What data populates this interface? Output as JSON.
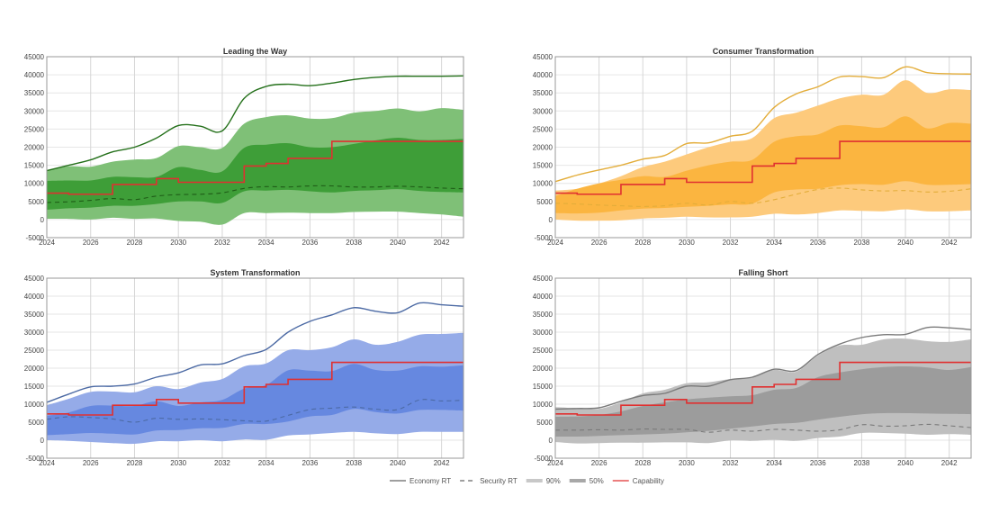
{
  "chart_data": [
    {
      "type": "area",
      "title": "Leading the Way",
      "x": [
        2024,
        2025,
        2026,
        2027,
        2028,
        2029,
        2030,
        2031,
        2032,
        2033,
        2034,
        2035,
        2036,
        2037,
        2038,
        2039,
        2040,
        2041,
        2042,
        2043
      ],
      "ylim": [
        -5000,
        45000
      ],
      "xlim": [
        2024,
        2043
      ],
      "yticks": [
        -5000,
        0,
        5000,
        10000,
        15000,
        20000,
        25000,
        30000,
        35000,
        40000,
        45000
      ],
      "xticks": [
        2024,
        2026,
        2028,
        2030,
        2032,
        2034,
        2036,
        2038,
        2040,
        2042
      ],
      "colors": {
        "line": "#2f7d22",
        "band90": "#7fc077",
        "band50": "#3e9e38"
      },
      "series": [
        {
          "name": "Economy RT",
          "values": [
            13500,
            15000,
            16500,
            18700,
            20000,
            22500,
            26000,
            25800,
            24500,
            33500,
            36800,
            37400,
            37000,
            37700,
            38700,
            39300,
            39600,
            39600,
            39600,
            39700
          ]
        },
        {
          "name": "Security RT",
          "values": [
            4700,
            4900,
            5300,
            5800,
            5500,
            6500,
            6900,
            7000,
            7400,
            8600,
            9100,
            9000,
            9300,
            9300,
            9000,
            9000,
            9200,
            9000,
            8700,
            8500
          ]
        },
        {
          "name": "90% upper",
          "values": [
            13600,
            14700,
            14600,
            16000,
            16600,
            17000,
            20300,
            20000,
            19800,
            26500,
            28300,
            28800,
            27900,
            28000,
            29500,
            30000,
            30700,
            29900,
            30800,
            30300
          ]
        },
        {
          "name": "50% upper",
          "values": [
            10700,
            10800,
            10800,
            11800,
            11700,
            11800,
            14500,
            13700,
            13300,
            19800,
            20700,
            21100,
            20000,
            20000,
            20900,
            21900,
            22600,
            22000,
            22000,
            22300
          ]
        },
        {
          "name": "50% lower",
          "values": [
            2700,
            3100,
            3300,
            3800,
            3800,
            4300,
            5000,
            5000,
            4600,
            7800,
            8000,
            8200,
            7800,
            7500,
            7900,
            8100,
            8400,
            7900,
            7600,
            7500
          ]
        },
        {
          "name": "90% lower",
          "values": [
            200,
            200,
            0,
            500,
            200,
            300,
            -400,
            -600,
            -1400,
            1800,
            1800,
            1900,
            1800,
            1800,
            2100,
            2200,
            2200,
            1800,
            1400,
            800
          ]
        },
        {
          "name": "Capability",
          "values": [
            7300,
            7000,
            7000,
            9700,
            9700,
            11300,
            10300,
            10300,
            10300,
            14800,
            15500,
            16900,
            16900,
            21600,
            21600,
            21600,
            21600,
            21600,
            21600,
            21600
          ]
        }
      ]
    },
    {
      "type": "area",
      "title": "Consumer Transformation",
      "x": [
        2024,
        2025,
        2026,
        2027,
        2028,
        2029,
        2030,
        2031,
        2032,
        2033,
        2034,
        2035,
        2036,
        2037,
        2038,
        2039,
        2040,
        2041,
        2042,
        2043
      ],
      "ylim": [
        -5000,
        45000
      ],
      "xlim": [
        2024,
        2043
      ],
      "yticks": [
        -5000,
        0,
        5000,
        10000,
        15000,
        20000,
        25000,
        30000,
        35000,
        40000,
        45000
      ],
      "xticks": [
        2024,
        2026,
        2028,
        2030,
        2032,
        2034,
        2036,
        2038,
        2040,
        2042
      ],
      "colors": {
        "line": "#e3ad3a",
        "band90": "#fdca7c",
        "band50": "#fbb540"
      },
      "series": [
        {
          "name": "Economy RT",
          "values": [
            10500,
            12300,
            13700,
            15000,
            16700,
            17700,
            21000,
            21200,
            23000,
            24400,
            31000,
            34700,
            36700,
            39400,
            39500,
            39200,
            42200,
            40600,
            40300,
            40200
          ]
        },
        {
          "name": "Security RT",
          "values": [
            4500,
            4300,
            4000,
            3800,
            3600,
            3800,
            4500,
            4000,
            5000,
            4500,
            5500,
            7000,
            8300,
            8700,
            8200,
            7900,
            8000,
            7600,
            7800,
            8500
          ]
        },
        {
          "name": "90% upper",
          "values": [
            8000,
            8500,
            10000,
            12000,
            14500,
            16000,
            18000,
            20000,
            21500,
            22500,
            28000,
            29500,
            31500,
            33500,
            34500,
            34500,
            38500,
            35000,
            36000,
            35800
          ]
        },
        {
          "name": "50% upper",
          "values": [
            6500,
            8500,
            10000,
            11000,
            12000,
            11800,
            13500,
            15000,
            16000,
            16500,
            21500,
            23000,
            23500,
            26000,
            25800,
            25500,
            28500,
            25200,
            26700,
            26500
          ]
        },
        {
          "name": "50% lower",
          "values": [
            1800,
            1700,
            1900,
            2500,
            3000,
            3200,
            3500,
            3800,
            4200,
            4400,
            7500,
            8300,
            8500,
            9500,
            9800,
            9600,
            10600,
            9600,
            9600,
            9800
          ]
        },
        {
          "name": "90% lower",
          "values": [
            0,
            -300,
            -300,
            -200,
            300,
            500,
            800,
            600,
            600,
            800,
            1600,
            1400,
            1800,
            2500,
            2400,
            2300,
            2800,
            2300,
            2300,
            2500
          ]
        },
        {
          "name": "Capability",
          "values": [
            7300,
            7000,
            7000,
            9700,
            9700,
            11300,
            10300,
            10300,
            10300,
            14800,
            15500,
            16900,
            16900,
            21600,
            21600,
            21600,
            21600,
            21600,
            21600,
            21600
          ]
        }
      ]
    },
    {
      "type": "area",
      "title": "System Transformation",
      "x": [
        2024,
        2025,
        2026,
        2027,
        2028,
        2029,
        2030,
        2031,
        2032,
        2033,
        2034,
        2035,
        2036,
        2037,
        2038,
        2039,
        2040,
        2041,
        2042,
        2043
      ],
      "ylim": [
        -5000,
        45000
      ],
      "xlim": [
        2024,
        2043
      ],
      "yticks": [
        -5000,
        0,
        5000,
        10000,
        15000,
        20000,
        25000,
        30000,
        35000,
        40000,
        45000
      ],
      "xticks": [
        2024,
        2026,
        2028,
        2030,
        2032,
        2034,
        2036,
        2038,
        2040,
        2042
      ],
      "colors": {
        "line": "#4c6aa4",
        "band90": "#95abe8",
        "band50": "#6688e0"
      },
      "series": [
        {
          "name": "Economy RT",
          "values": [
            10500,
            12800,
            14800,
            15000,
            15600,
            17500,
            18700,
            20900,
            21200,
            23500,
            25200,
            30000,
            33000,
            34800,
            36800,
            35800,
            35400,
            38100,
            37600,
            37200
          ]
        },
        {
          "name": "Security RT",
          "values": [
            5800,
            6500,
            6300,
            5900,
            5000,
            6100,
            5800,
            5900,
            5700,
            5400,
            5300,
            6900,
            8500,
            8900,
            9200,
            8600,
            8500,
            11200,
            10900,
            11100
          ]
        },
        {
          "name": "90% upper",
          "values": [
            9700,
            11500,
            13400,
            13500,
            13300,
            15000,
            14200,
            16000,
            17000,
            20500,
            21300,
            25000,
            25000,
            25800,
            28000,
            26500,
            27300,
            29300,
            29500,
            29800
          ]
        },
        {
          "name": "50% upper",
          "values": [
            6800,
            7700,
            9500,
            9600,
            9500,
            10800,
            9500,
            10500,
            11200,
            14300,
            15300,
            19400,
            19300,
            19200,
            21200,
            19500,
            19300,
            20500,
            20400,
            20800
          ]
        },
        {
          "name": "50% lower",
          "values": [
            1400,
            1700,
            2000,
            1800,
            1600,
            2700,
            2800,
            3300,
            3400,
            4500,
            4500,
            5200,
            6600,
            7000,
            8700,
            7800,
            7400,
            8400,
            8400,
            8200
          ]
        },
        {
          "name": "90% lower",
          "values": [
            0,
            -200,
            -500,
            -800,
            -1000,
            -300,
            -300,
            0,
            -300,
            200,
            100,
            1300,
            1600,
            2000,
            2300,
            1900,
            1700,
            2300,
            2300,
            2300
          ]
        },
        {
          "name": "Capability",
          "values": [
            7300,
            7000,
            7000,
            9700,
            9700,
            11300,
            10300,
            10300,
            10300,
            14800,
            15500,
            16900,
            16900,
            21600,
            21600,
            21600,
            21600,
            21600,
            21600,
            21600
          ]
        }
      ]
    },
    {
      "type": "area",
      "title": "Falling Short",
      "x": [
        2024,
        2025,
        2026,
        2027,
        2028,
        2029,
        2030,
        2031,
        2032,
        2033,
        2034,
        2035,
        2036,
        2037,
        2038,
        2039,
        2040,
        2041,
        2042,
        2043
      ],
      "ylim": [
        -5000,
        45000
      ],
      "xlim": [
        2024,
        2043
      ],
      "yticks": [
        -5000,
        0,
        5000,
        10000,
        15000,
        20000,
        25000,
        30000,
        35000,
        40000,
        45000
      ],
      "xticks": [
        2024,
        2026,
        2028,
        2030,
        2032,
        2034,
        2036,
        2038,
        2040,
        2042
      ],
      "colors": {
        "line": "#7a7a7a",
        "band90": "#bfbfbf",
        "band50": "#9c9c9c"
      },
      "series": [
        {
          "name": "Economy RT",
          "values": [
            8600,
            8800,
            9000,
            10800,
            12400,
            13000,
            15000,
            15000,
            16800,
            17500,
            19700,
            19300,
            23800,
            26700,
            28500,
            29300,
            29400,
            31300,
            31200,
            30700
          ]
        },
        {
          "name": "Security RT",
          "values": [
            2800,
            2800,
            2900,
            2800,
            3100,
            3000,
            3000,
            2200,
            2800,
            2500,
            3000,
            2800,
            2500,
            2900,
            4300,
            3900,
            4000,
            4400,
            4000,
            3500
          ]
        },
        {
          "name": "90% upper",
          "values": [
            9200,
            8900,
            8700,
            10500,
            13000,
            14000,
            15800,
            16100,
            17000,
            17500,
            19500,
            19000,
            23500,
            26300,
            26500,
            28000,
            28200,
            27500,
            27300,
            28000
          ]
        },
        {
          "name": "50% upper",
          "values": [
            6500,
            6600,
            7000,
            8000,
            9500,
            10500,
            11300,
            11800,
            12200,
            12500,
            14000,
            14500,
            17500,
            18800,
            19700,
            20300,
            20500,
            20200,
            19500,
            20300
          ]
        },
        {
          "name": "50% lower",
          "values": [
            1000,
            1000,
            1200,
            1400,
            1600,
            1800,
            2200,
            2600,
            3200,
            3800,
            4500,
            4800,
            5700,
            6500,
            7200,
            7500,
            7500,
            7400,
            7300,
            7200
          ]
        },
        {
          "name": "90% lower",
          "values": [
            -500,
            -900,
            -800,
            -700,
            -700,
            -600,
            -600,
            -800,
            -100,
            -200,
            100,
            -200,
            600,
            1000,
            2000,
            2000,
            1800,
            1500,
            1700,
            1500
          ]
        },
        {
          "name": "Capability",
          "values": [
            7300,
            7000,
            7000,
            9700,
            9700,
            11300,
            10300,
            10300,
            10300,
            14800,
            15500,
            16900,
            16900,
            21600,
            21600,
            21600,
            21600,
            21600,
            21600,
            21600
          ]
        }
      ]
    }
  ],
  "legend": {
    "items": [
      {
        "label": "Economy RT",
        "style": "solid",
        "color": "#666666"
      },
      {
        "label": "Security RT",
        "style": "dashed",
        "color": "#666666"
      },
      {
        "label": "90%",
        "style": "band",
        "color": "#c8c8c8"
      },
      {
        "label": "50%",
        "style": "band",
        "color": "#a8a8a8"
      },
      {
        "label": "Capability",
        "style": "solid",
        "color": "#e03030"
      }
    ],
    "placement": "bottom-center"
  },
  "capability_color": "#e03030"
}
